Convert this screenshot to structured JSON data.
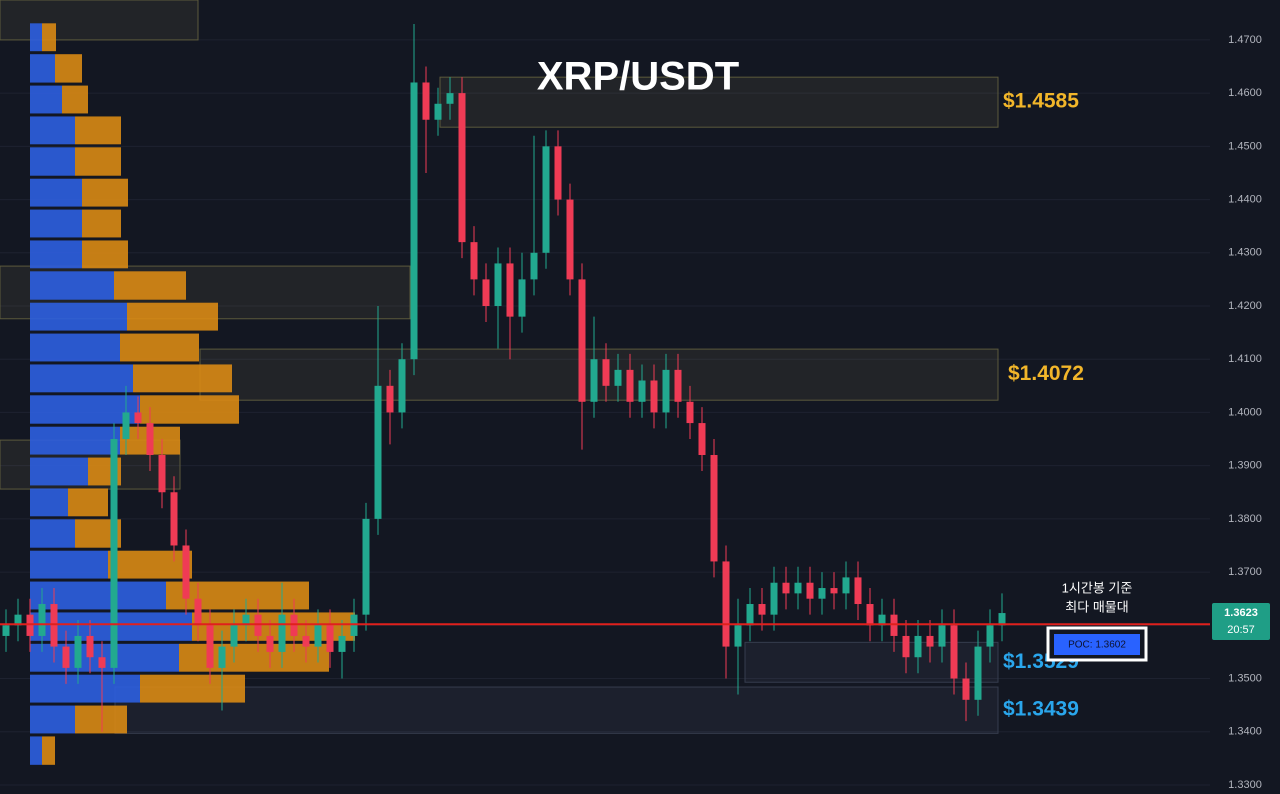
{
  "chart_data": {
    "type": "candlestick",
    "title": "XRP/USDT",
    "ylim": [
      1.3283,
      1.4775
    ],
    "yticks": [
      {
        "value": 1.33,
        "label": "1.3300"
      },
      {
        "value": 1.34,
        "label": "1.3400"
      },
      {
        "value": 1.35,
        "label": "1.3500"
      },
      {
        "value": 1.36,
        "label": "1.3600"
      },
      {
        "value": 1.37,
        "label": "1.3700"
      },
      {
        "value": 1.38,
        "label": "1.3800"
      },
      {
        "value": 1.39,
        "label": "1.3900"
      },
      {
        "value": 1.4,
        "label": "1.4000"
      },
      {
        "value": 1.41,
        "label": "1.4100"
      },
      {
        "value": 1.42,
        "label": "1.4200"
      },
      {
        "value": 1.43,
        "label": "1.4300"
      },
      {
        "value": 1.44,
        "label": "1.4400"
      },
      {
        "value": 1.45,
        "label": "1.4500"
      },
      {
        "value": 1.46,
        "label": "1.4600"
      },
      {
        "value": 1.47,
        "label": "1.4700"
      }
    ],
    "grid": true,
    "up_color": "#22a98f",
    "down_color": "#ef3b55",
    "open": [
      1.358,
      1.36,
      1.362,
      1.358,
      1.364,
      1.356,
      1.352,
      1.358,
      1.354,
      1.352,
      1.395,
      1.4,
      1.398,
      1.392,
      1.385,
      1.375,
      1.365,
      1.36,
      1.352,
      1.356,
      1.36,
      1.362,
      1.358,
      1.355,
      1.362,
      1.358,
      1.356,
      1.36,
      1.355,
      1.358,
      1.362,
      1.38,
      1.405,
      1.4,
      1.41,
      1.462,
      1.455,
      1.458,
      1.46,
      1.432,
      1.425,
      1.42,
      1.428,
      1.418,
      1.425,
      1.43,
      1.45,
      1.44,
      1.425,
      1.402,
      1.41,
      1.405,
      1.408,
      1.402,
      1.406,
      1.4,
      1.408,
      1.402,
      1.398,
      1.392,
      1.372,
      1.356,
      1.36,
      1.364,
      1.362,
      1.368,
      1.366,
      1.368,
      1.365,
      1.367,
      1.366,
      1.369,
      1.364,
      1.36,
      1.362,
      1.358,
      1.354,
      1.358,
      1.356,
      1.36,
      1.35,
      1.346,
      1.356,
      1.36
    ],
    "high": [
      1.363,
      1.365,
      1.365,
      1.367,
      1.367,
      1.359,
      1.361,
      1.361,
      1.357,
      1.398,
      1.405,
      1.403,
      1.401,
      1.395,
      1.388,
      1.378,
      1.368,
      1.363,
      1.359,
      1.363,
      1.365,
      1.365,
      1.361,
      1.368,
      1.365,
      1.361,
      1.363,
      1.363,
      1.361,
      1.365,
      1.383,
      1.42,
      1.408,
      1.413,
      1.473,
      1.465,
      1.461,
      1.463,
      1.463,
      1.435,
      1.428,
      1.431,
      1.431,
      1.43,
      1.452,
      1.453,
      1.453,
      1.443,
      1.428,
      1.418,
      1.413,
      1.411,
      1.411,
      1.409,
      1.409,
      1.411,
      1.411,
      1.405,
      1.401,
      1.395,
      1.375,
      1.365,
      1.367,
      1.367,
      1.371,
      1.371,
      1.371,
      1.371,
      1.37,
      1.37,
      1.372,
      1.372,
      1.367,
      1.365,
      1.365,
      1.361,
      1.361,
      1.361,
      1.363,
      1.363,
      1.353,
      1.359,
      1.363,
      1.366
    ],
    "low": [
      1.355,
      1.357,
      1.355,
      1.355,
      1.353,
      1.349,
      1.349,
      1.351,
      1.34,
      1.349,
      1.392,
      1.395,
      1.389,
      1.382,
      1.372,
      1.362,
      1.357,
      1.349,
      1.344,
      1.353,
      1.357,
      1.355,
      1.352,
      1.352,
      1.355,
      1.353,
      1.353,
      1.352,
      1.35,
      1.355,
      1.359,
      1.377,
      1.394,
      1.397,
      1.407,
      1.445,
      1.452,
      1.455,
      1.429,
      1.422,
      1.417,
      1.412,
      1.41,
      1.415,
      1.422,
      1.427,
      1.437,
      1.422,
      1.393,
      1.399,
      1.402,
      1.402,
      1.399,
      1.399,
      1.397,
      1.397,
      1.399,
      1.395,
      1.389,
      1.369,
      1.35,
      1.347,
      1.357,
      1.359,
      1.359,
      1.363,
      1.363,
      1.362,
      1.362,
      1.363,
      1.363,
      1.361,
      1.357,
      1.357,
      1.355,
      1.351,
      1.351,
      1.353,
      1.353,
      1.347,
      1.342,
      1.343,
      1.353,
      1.357
    ],
    "close": [
      1.36,
      1.362,
      1.358,
      1.364,
      1.356,
      1.352,
      1.358,
      1.354,
      1.352,
      1.395,
      1.4,
      1.398,
      1.392,
      1.385,
      1.375,
      1.365,
      1.36,
      1.352,
      1.356,
      1.36,
      1.362,
      1.358,
      1.355,
      1.362,
      1.358,
      1.356,
      1.36,
      1.355,
      1.358,
      1.362,
      1.38,
      1.405,
      1.4,
      1.41,
      1.462,
      1.455,
      1.458,
      1.46,
      1.432,
      1.425,
      1.42,
      1.428,
      1.418,
      1.425,
      1.43,
      1.45,
      1.44,
      1.425,
      1.402,
      1.41,
      1.405,
      1.408,
      1.402,
      1.406,
      1.4,
      1.408,
      1.402,
      1.398,
      1.392,
      1.372,
      1.356,
      1.36,
      1.364,
      1.362,
      1.368,
      1.366,
      1.368,
      1.365,
      1.367,
      1.366,
      1.369,
      1.364,
      1.36,
      1.362,
      1.358,
      1.354,
      1.358,
      1.356,
      1.36,
      1.35,
      1.346,
      1.356,
      1.36,
      1.3623
    ],
    "volume_profile": {
      "xlim": [
        0,
        1000
      ],
      "bins": [
        1.4734,
        1.4676,
        1.4617,
        1.4559,
        1.4501,
        1.4442,
        1.4384,
        1.4326,
        1.4268,
        1.4209,
        1.4151,
        1.4093,
        1.4035,
        1.3976,
        1.3918,
        1.386,
        1.3802,
        1.3743,
        1.3685,
        1.3627,
        1.3568,
        1.351,
        1.3452,
        1.3394,
        1.3335
      ],
      "series": [
        {
          "color": "#2e5fe0",
          "values": [
            12,
            25,
            32,
            45,
            45,
            52,
            52,
            52,
            84,
            97,
            90,
            103,
            110,
            90,
            58,
            38,
            45,
            78,
            136,
            162,
            149,
            110,
            45,
            12
          ]
        },
        {
          "color": "#d98a14",
          "values": [
            14,
            27,
            26,
            46,
            46,
            46,
            39,
            46,
            72,
            91,
            79,
            99,
            99,
            60,
            33,
            40,
            46,
            84,
            143,
            163,
            150,
            105,
            52,
            13
          ]
        }
      ]
    },
    "zones": [
      {
        "top": 1.4775,
        "bottom": 1.47,
        "color": "#6b6a45"
      },
      {
        "top": 1.463,
        "bottom": 1.4536,
        "label": "$1.4585",
        "color": "#f2b62a"
      },
      {
        "top": 1.4275,
        "bottom": 1.4176,
        "color": "#6b6a45"
      },
      {
        "top": 1.4119,
        "bottom": 1.4023,
        "label": "$1.4072",
        "color": "#f2b62a"
      },
      {
        "top": 1.3948,
        "bottom": 1.3856,
        "color": "#6b6a45"
      },
      {
        "top": 1.3568,
        "bottom": 1.3493,
        "label": "$1.3529",
        "color": "#2aa6ec"
      },
      {
        "top": 1.3484,
        "bottom": 1.3397,
        "label": "$1.3439",
        "color": "#2aa6ec"
      }
    ],
    "poc": {
      "value": 1.3602,
      "label": "POC: 1.3602",
      "color": "#e0201c"
    },
    "annotation": [
      "1시간봉 기준",
      "최다 매물대"
    ],
    "last_price": {
      "value": 1.3623,
      "time": "20:57"
    }
  }
}
